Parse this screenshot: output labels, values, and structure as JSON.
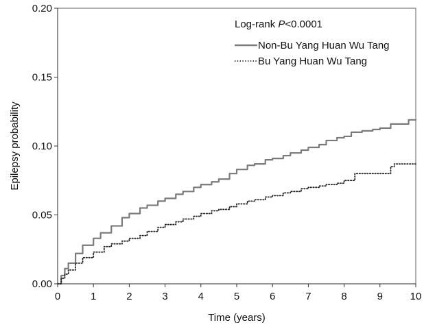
{
  "chart_data": {
    "type": "line",
    "title": "",
    "xlabel": "Time (years)",
    "ylabel": "Epilepsy probability",
    "xlim": [
      0,
      10
    ],
    "ylim": [
      0,
      0.2
    ],
    "xticks": [
      0,
      1,
      2,
      3,
      4,
      5,
      6,
      7,
      8,
      9,
      10
    ],
    "yticks": [
      0.0,
      0.05,
      0.1,
      0.15,
      0.2
    ],
    "xtick_labels": [
      "0",
      "1",
      "2",
      "3",
      "4",
      "5",
      "6",
      "7",
      "8",
      "9",
      "10"
    ],
    "ytick_labels": [
      "0.00",
      "0.05",
      "0.10",
      "0.15",
      "0.20"
    ],
    "grid": false,
    "legend_position": "top-right",
    "annotation": {
      "prefix": "Log-rank ",
      "p_label": "P",
      "suffix": "<0.0001"
    },
    "series": [
      {
        "name": "Non-Bu Yang Huan Wu Tang",
        "line_style": "solid",
        "color": "#7a7a7a",
        "x": [
          0,
          0.1,
          0.2,
          0.3,
          0.5,
          0.7,
          1.0,
          1.2,
          1.5,
          1.8,
          2.0,
          2.3,
          2.5,
          2.8,
          3.0,
          3.3,
          3.5,
          3.8,
          4.0,
          4.3,
          4.5,
          4.8,
          5.0,
          5.3,
          5.5,
          5.8,
          6.0,
          6.3,
          6.5,
          6.8,
          7.0,
          7.3,
          7.5,
          7.8,
          8.0,
          8.2,
          8.5,
          8.8,
          9.0,
          9.3,
          9.5,
          9.8,
          10.0
        ],
        "y": [
          0,
          0.006,
          0.011,
          0.015,
          0.022,
          0.028,
          0.033,
          0.037,
          0.042,
          0.048,
          0.051,
          0.055,
          0.057,
          0.06,
          0.062,
          0.065,
          0.067,
          0.07,
          0.072,
          0.074,
          0.076,
          0.08,
          0.083,
          0.086,
          0.087,
          0.09,
          0.091,
          0.093,
          0.095,
          0.097,
          0.099,
          0.101,
          0.104,
          0.106,
          0.107,
          0.11,
          0.111,
          0.112,
          0.113,
          0.116,
          0.116,
          0.119,
          0.119
        ]
      },
      {
        "name": "Bu Yang Huan Wu Tang",
        "line_style": "dotted",
        "color": "#222222",
        "x": [
          0,
          0.1,
          0.2,
          0.3,
          0.5,
          0.7,
          1.0,
          1.3,
          1.5,
          1.8,
          2.0,
          2.3,
          2.5,
          2.8,
          3.0,
          3.3,
          3.5,
          3.8,
          4.0,
          4.3,
          4.5,
          4.8,
          5.0,
          5.3,
          5.5,
          5.8,
          6.0,
          6.3,
          6.5,
          6.8,
          7.0,
          7.3,
          7.5,
          7.8,
          8.0,
          8.3,
          8.5,
          8.8,
          9.0,
          9.3,
          9.4,
          10.0
        ],
        "y": [
          0,
          0.004,
          0.007,
          0.01,
          0.015,
          0.019,
          0.023,
          0.027,
          0.029,
          0.031,
          0.033,
          0.035,
          0.038,
          0.041,
          0.043,
          0.045,
          0.047,
          0.049,
          0.051,
          0.053,
          0.054,
          0.056,
          0.058,
          0.06,
          0.061,
          0.063,
          0.064,
          0.066,
          0.067,
          0.069,
          0.07,
          0.071,
          0.072,
          0.073,
          0.075,
          0.08,
          0.08,
          0.08,
          0.08,
          0.085,
          0.087,
          0.087
        ]
      }
    ]
  }
}
